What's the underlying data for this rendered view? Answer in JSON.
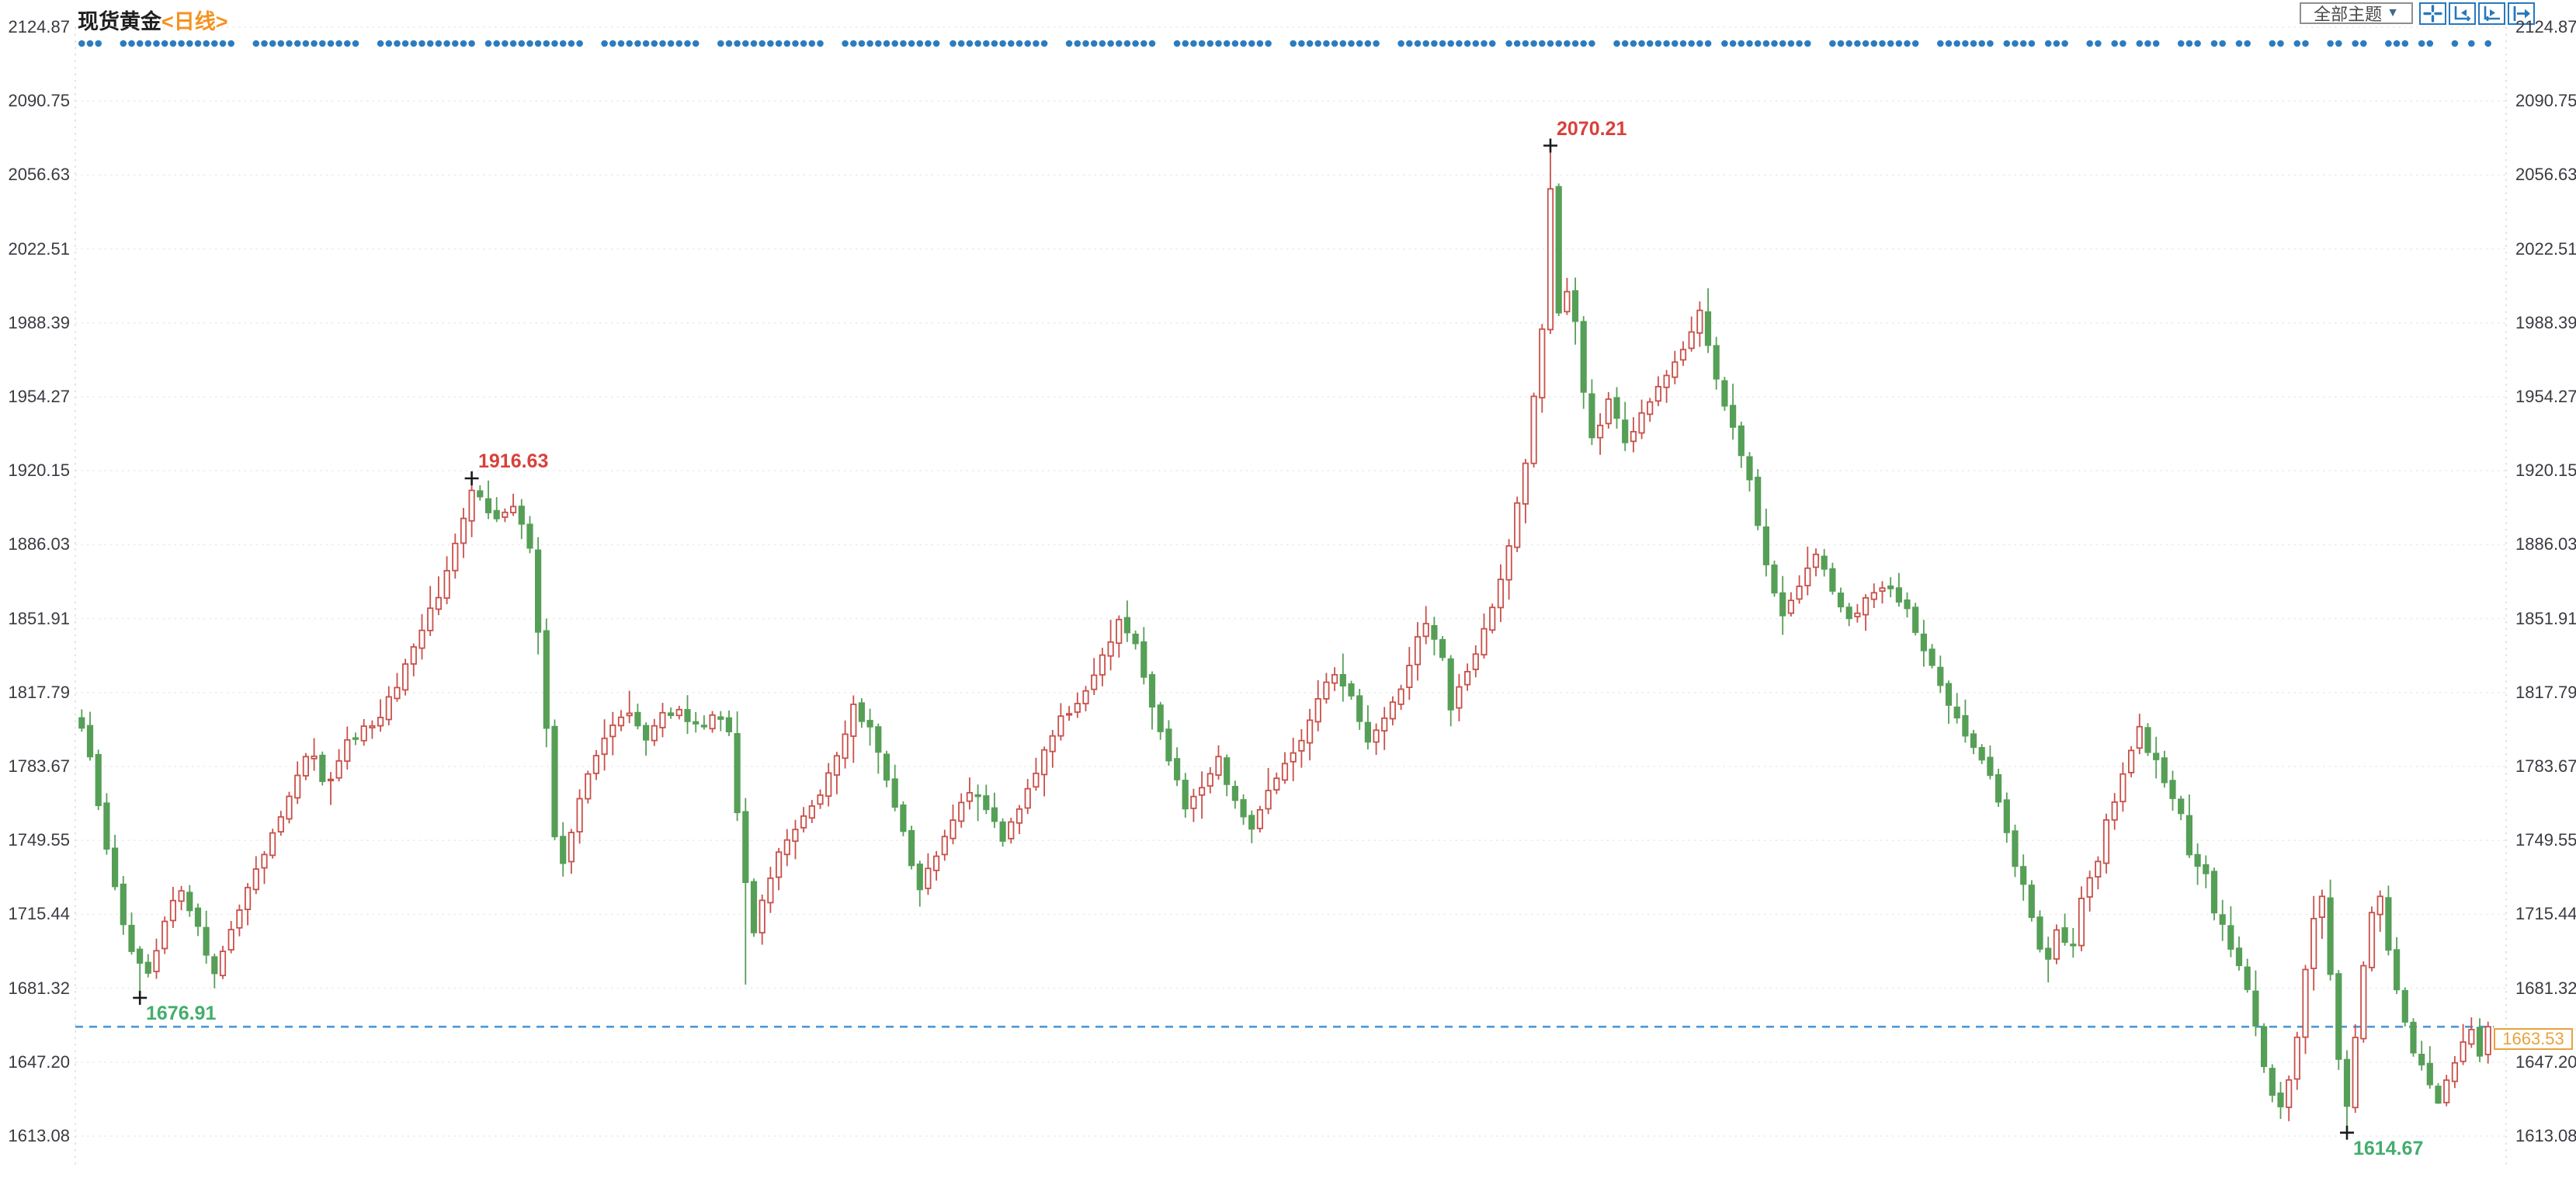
{
  "header": {
    "title": "现货黄金",
    "period_tag": "<日线>"
  },
  "toolbar": {
    "theme_selector_label": "全部主题",
    "dropdown_arrow": "▼",
    "icons": [
      {
        "name": "crosshair-move-icon"
      },
      {
        "name": "x-axis-zoom-icon"
      },
      {
        "name": "x-axis-pan-icon"
      },
      {
        "name": "jump-to-latest-icon"
      }
    ]
  },
  "y_axis": {
    "ticks": [
      "2124.87",
      "2090.75",
      "2056.63",
      "2022.51",
      "1988.39",
      "1954.27",
      "1920.15",
      "1886.03",
      "1851.91",
      "1817.79",
      "1783.67",
      "1749.55",
      "1715.44",
      "1681.32",
      "1647.20",
      "1613.08"
    ]
  },
  "price_line": {
    "value": "1663.53"
  },
  "chart_data": {
    "type": "candlestick",
    "instrument": "现货黄金",
    "interval": "日线",
    "y_ticks": [
      2124.87,
      2090.75,
      2056.63,
      2022.51,
      1988.39,
      1954.27,
      1920.15,
      1886.03,
      1851.91,
      1817.79,
      1783.67,
      1749.55,
      1715.44,
      1681.32,
      1647.2,
      1613.08
    ],
    "ylim": [
      1596,
      2132
    ],
    "candle_count": 291,
    "last_price": 1663.53,
    "close_anchors": [
      [
        0,
        1800
      ],
      [
        1,
        1788
      ],
      [
        2,
        1768
      ],
      [
        3,
        1748
      ],
      [
        4,
        1728
      ],
      [
        5,
        1712
      ],
      [
        6,
        1700
      ],
      [
        7,
        1692
      ],
      [
        8,
        1690
      ],
      [
        9,
        1700
      ],
      [
        10,
        1712
      ],
      [
        11,
        1720
      ],
      [
        12,
        1725
      ],
      [
        13,
        1718
      ],
      [
        14,
        1710
      ],
      [
        15,
        1698
      ],
      [
        16,
        1690
      ],
      [
        17,
        1697
      ],
      [
        18,
        1706
      ],
      [
        19,
        1716
      ],
      [
        20,
        1726
      ],
      [
        22,
        1742
      ],
      [
        24,
        1760
      ],
      [
        26,
        1780
      ],
      [
        27,
        1788
      ],
      [
        28,
        1786
      ],
      [
        29,
        1776
      ],
      [
        30,
        1780
      ],
      [
        32,
        1795
      ],
      [
        34,
        1800
      ],
      [
        36,
        1806
      ],
      [
        38,
        1822
      ],
      [
        40,
        1840
      ],
      [
        42,
        1855
      ],
      [
        44,
        1872
      ],
      [
        46,
        1900
      ],
      [
        47,
        1912
      ],
      [
        48,
        1906
      ],
      [
        50,
        1896
      ],
      [
        52,
        1902
      ],
      [
        54,
        1886
      ],
      [
        55,
        1845
      ],
      [
        56,
        1800
      ],
      [
        57,
        1752
      ],
      [
        58,
        1740
      ],
      [
        59,
        1752
      ],
      [
        60,
        1768
      ],
      [
        62,
        1790
      ],
      [
        64,
        1802
      ],
      [
        66,
        1808
      ],
      [
        68,
        1795
      ],
      [
        70,
        1806
      ],
      [
        72,
        1810
      ],
      [
        74,
        1801
      ],
      [
        76,
        1808
      ],
      [
        78,
        1800
      ],
      [
        79,
        1762
      ],
      [
        80,
        1729
      ],
      [
        81,
        1706
      ],
      [
        82,
        1722
      ],
      [
        84,
        1745
      ],
      [
        86,
        1756
      ],
      [
        88,
        1765
      ],
      [
        90,
        1780
      ],
      [
        92,
        1797
      ],
      [
        93,
        1810
      ],
      [
        95,
        1800
      ],
      [
        97,
        1778
      ],
      [
        99,
        1752
      ],
      [
        101,
        1727
      ],
      [
        103,
        1742
      ],
      [
        105,
        1758
      ],
      [
        107,
        1772
      ],
      [
        109,
        1766
      ],
      [
        111,
        1751
      ],
      [
        113,
        1763
      ],
      [
        115,
        1780
      ],
      [
        117,
        1800
      ],
      [
        119,
        1810
      ],
      [
        121,
        1820
      ],
      [
        123,
        1836
      ],
      [
        125,
        1850
      ],
      [
        127,
        1840
      ],
      [
        129,
        1812
      ],
      [
        131,
        1786
      ],
      [
        133,
        1766
      ],
      [
        135,
        1776
      ],
      [
        137,
        1786
      ],
      [
        139,
        1766
      ],
      [
        141,
        1755
      ],
      [
        143,
        1772
      ],
      [
        145,
        1787
      ],
      [
        147,
        1797
      ],
      [
        149,
        1815
      ],
      [
        151,
        1827
      ],
      [
        153,
        1816
      ],
      [
        155,
        1797
      ],
      [
        157,
        1806
      ],
      [
        159,
        1821
      ],
      [
        161,
        1842
      ],
      [
        162,
        1848
      ],
      [
        164,
        1832
      ],
      [
        165,
        1808
      ],
      [
        166,
        1818
      ],
      [
        168,
        1838
      ],
      [
        170,
        1858
      ],
      [
        172,
        1885
      ],
      [
        174,
        1925
      ],
      [
        175,
        1952
      ],
      [
        176,
        1988
      ],
      [
        177,
        2048
      ],
      [
        178,
        1992
      ],
      [
        179,
        2002
      ],
      [
        180,
        1988
      ],
      [
        181,
        1955
      ],
      [
        182,
        1935
      ],
      [
        184,
        1952
      ],
      [
        186,
        1932
      ],
      [
        188,
        1946
      ],
      [
        190,
        1958
      ],
      [
        192,
        1972
      ],
      [
        194,
        1983
      ],
      [
        195,
        1992
      ],
      [
        197,
        1965
      ],
      [
        199,
        1940
      ],
      [
        201,
        1915
      ],
      [
        202,
        1895
      ],
      [
        203,
        1875
      ],
      [
        205,
        1855
      ],
      [
        207,
        1868
      ],
      [
        209,
        1880
      ],
      [
        211,
        1866
      ],
      [
        213,
        1852
      ],
      [
        215,
        1860
      ],
      [
        217,
        1866
      ],
      [
        218,
        1868
      ],
      [
        220,
        1855
      ],
      [
        222,
        1838
      ],
      [
        224,
        1820
      ],
      [
        226,
        1806
      ],
      [
        228,
        1792
      ],
      [
        230,
        1778
      ],
      [
        231,
        1768
      ],
      [
        233,
        1740
      ],
      [
        235,
        1715
      ],
      [
        236,
        1700
      ],
      [
        237,
        1695
      ],
      [
        238,
        1710
      ],
      [
        239,
        1703
      ],
      [
        240,
        1700
      ],
      [
        241,
        1722
      ],
      [
        243,
        1740
      ],
      [
        244,
        1758
      ],
      [
        246,
        1778
      ],
      [
        248,
        1800
      ],
      [
        249,
        1792
      ],
      [
        251,
        1778
      ],
      [
        253,
        1760
      ],
      [
        254,
        1745
      ],
      [
        256,
        1732
      ],
      [
        257,
        1718
      ],
      [
        259,
        1700
      ],
      [
        261,
        1680
      ],
      [
        262,
        1662
      ],
      [
        263,
        1645
      ],
      [
        264,
        1632
      ],
      [
        265,
        1625
      ],
      [
        266,
        1640
      ],
      [
        267,
        1660
      ],
      [
        268,
        1688
      ],
      [
        269,
        1715
      ],
      [
        270,
        1722
      ],
      [
        271,
        1690
      ],
      [
        272,
        1650
      ],
      [
        273,
        1626
      ],
      [
        274,
        1660
      ],
      [
        275,
        1690
      ],
      [
        276,
        1715
      ],
      [
        277,
        1722
      ],
      [
        278,
        1700
      ],
      [
        279,
        1680
      ],
      [
        280,
        1665
      ],
      [
        281,
        1650
      ],
      [
        282,
        1645
      ],
      [
        283,
        1635
      ],
      [
        284,
        1630
      ],
      [
        285,
        1640
      ],
      [
        286,
        1648
      ],
      [
        287,
        1658
      ],
      [
        288,
        1662
      ],
      [
        289,
        1652
      ],
      [
        290,
        1663.53
      ]
    ],
    "extreme_overrides": {
      "7": {
        "low": 1676.91
      },
      "16": {
        "low": 1681.3
      },
      "47": {
        "high": 1916.63
      },
      "80": {
        "low": 1683
      },
      "101": {
        "low": 1719
      },
      "177": {
        "high": 2070.21
      },
      "195": {
        "high": 1998.3
      },
      "237": {
        "low": 1684
      },
      "248": {
        "high": 1808
      },
      "265": {
        "low": 1621
      },
      "273": {
        "low": 1614.67
      },
      "284": {
        "low": 1628
      },
      "290": {
        "close": 1663.53
      }
    },
    "annotations": [
      {
        "index": 47,
        "price": 1916.63,
        "label": "1916.63",
        "side": "high"
      },
      {
        "index": 177,
        "price": 2070.21,
        "label": "2070.21",
        "side": "high"
      },
      {
        "index": 7,
        "price": 1676.91,
        "label": "1676.91",
        "side": "low"
      },
      {
        "index": 273,
        "price": 1614.67,
        "label": "1614.67",
        "side": "low"
      }
    ],
    "marker_dots": {
      "gap_indices": [
        3,
        4,
        19,
        20,
        34,
        35,
        48,
        61,
        62,
        75,
        76,
        90,
        91,
        104,
        117,
        118,
        130,
        131,
        144,
        145,
        157,
        158,
        171,
        183,
        184,
        197,
        209,
        210,
        222,
        223,
        231,
        236,
        240,
        241,
        244,
        247,
        251,
        252,
        256,
        259,
        262,
        263,
        266,
        269,
        270,
        273,
        276,
        277,
        281,
        284,
        285,
        287,
        289
      ]
    },
    "colors": {
      "up": "#c9504a",
      "down": "#569f57",
      "dot": "#2b7cc0",
      "dash_line": "#4a97d8",
      "annotation_up": "#d9403a",
      "annotation_down": "#43ad6d",
      "tag": "#e9a23b",
      "grid": "#ececec",
      "axis_text": "#3a3a42",
      "cross": "#1a1a1a"
    }
  }
}
